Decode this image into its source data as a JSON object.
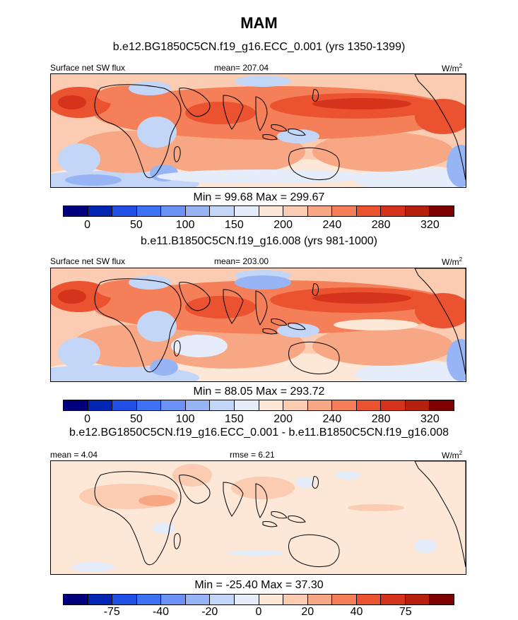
{
  "figure_title": "MAM",
  "units_label": "W/m",
  "units_exp": "2",
  "colors": [
    "#00007f",
    "#0026b3",
    "#1f4fe5",
    "#3d72f5",
    "#6a93f5",
    "#97b5f5",
    "#c3d6f7",
    "#e5ecfa",
    "#fde7d6",
    "#fbccb2",
    "#f8a785",
    "#f57f58",
    "#ea5230",
    "#d5331b",
    "#b5200f",
    "#7f0000"
  ],
  "chart_data": [
    {
      "type": "heatmap",
      "subtitle": "b.e12.BG1850C5CN.f19_g16.ECC_0.001 (yrs 1350-1399)",
      "left_label": "Surface net SW flux",
      "center_label": "mean= 207.04",
      "minmax": "Min =  99.68 Max = 299.67",
      "min": 99.68,
      "max": 299.67,
      "mean": 207.04,
      "colorbar_ticks": [
        "0",
        "50",
        "100",
        "150",
        "200",
        "240",
        "280",
        "320"
      ]
    },
    {
      "type": "heatmap",
      "subtitle": "b.e11.B1850C5CN.f19_g16.008 (yrs 981-1000)",
      "left_label": "Surface net SW flux",
      "center_label": "mean= 203.00",
      "minmax": "Min =  88.05 Max = 293.72",
      "min": 88.05,
      "max": 293.72,
      "mean": 203.0,
      "colorbar_ticks": [
        "0",
        "50",
        "100",
        "150",
        "200",
        "240",
        "280",
        "320"
      ]
    },
    {
      "type": "heatmap",
      "subtitle": "b.e12.BG1850C5CN.f19_g16.ECC_0.001 - b.e11.B1850C5CN.f19_g16.008",
      "left_label": "mean =   4.04",
      "center_label": "rmse =   6.21",
      "minmax": "Min = -25.40 Max =  37.30",
      "min": -25.4,
      "max": 37.3,
      "mean": 4.04,
      "rmse": 6.21,
      "colorbar_ticks": [
        "-75",
        "-40",
        "-20",
        "0",
        "20",
        "40",
        "75"
      ]
    }
  ]
}
